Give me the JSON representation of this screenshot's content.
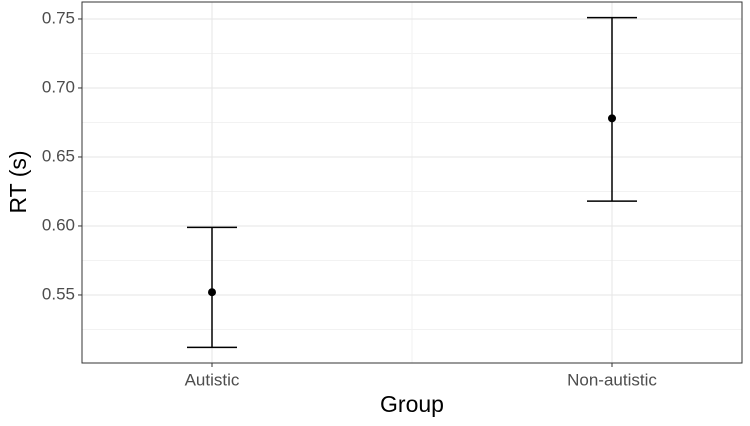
{
  "chart_data": {
    "type": "pointrange",
    "x_label": "Group",
    "y_label": "RT (s)",
    "categories": [
      "Autistic",
      "Non-autistic"
    ],
    "values": [
      0.552,
      0.678
    ],
    "lower": [
      0.512,
      0.618
    ],
    "upper": [
      0.599,
      0.751
    ],
    "color": "#000000",
    "ylim": [
      0.5007,
      0.7623
    ],
    "yticks": [
      0.55,
      {
        "value": 0.6,
        "label": "0.60"
      },
      0.65,
      {
        "value": 0.7,
        "label": "0.70"
      },
      0.75
    ],
    "grid": true
  }
}
